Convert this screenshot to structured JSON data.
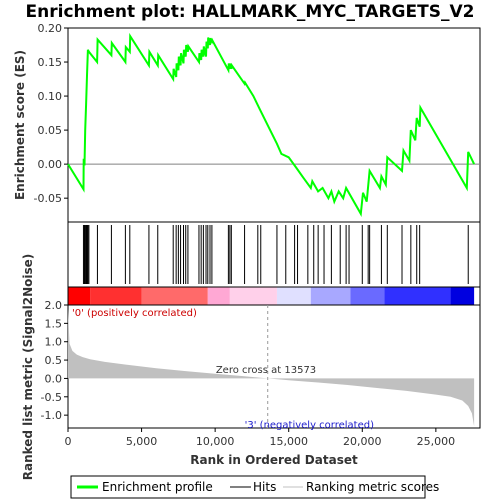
{
  "chart_data": {
    "type": "line",
    "title": "Enrichment plot: HALLMARK_MYC_TARGETS_V2",
    "xlabel": "Rank in Ordered Dataset",
    "ylabel_top": "Enrichment score (ES)",
    "ylabel_bottom": "Ranked list metric (Signal2Noise)",
    "xlim": [
      0,
      28000
    ],
    "x_ticks": [
      0,
      5000,
      10000,
      15000,
      20000,
      25000
    ],
    "x_tick_labels": [
      "0",
      "5,000",
      "10,000",
      "15,000",
      "20,000",
      "25,000"
    ],
    "es_ylim": [
      -0.085,
      0.2
    ],
    "es_ticks": [
      -0.05,
      0.0,
      0.05,
      0.1,
      0.15,
      0.2
    ],
    "es_tick_labels": [
      "-0.05",
      "0.00",
      "0.05",
      "0.10",
      "0.15",
      "0.20"
    ],
    "metric_ylim": [
      -1.35,
      2.0
    ],
    "metric_ticks": [
      -1.0,
      -0.5,
      0.0,
      0.5,
      1.0,
      1.5,
      2.0
    ],
    "metric_tick_labels": [
      "-1.0",
      "-0.5",
      "0.0",
      "0.5",
      "1.0",
      "1.5",
      "2.0"
    ],
    "series": [
      {
        "name": "Enrichment profile",
        "x": [
          0,
          1050,
          1070,
          1120,
          1170,
          1230,
          1290,
          1350,
          1420,
          1980,
          2010,
          2950,
          2980,
          3900,
          3930,
          4200,
          4230,
          5500,
          5530,
          6100,
          6130,
          7150,
          7180,
          7350,
          7380,
          7500,
          7530,
          7650,
          7680,
          7850,
          7880,
          8000,
          8030,
          8150,
          8180,
          8900,
          8930,
          9050,
          9080,
          9200,
          9230,
          9380,
          9410,
          9500,
          9530,
          9650,
          9680,
          9780,
          9810,
          10900,
          10930,
          11000,
          11030,
          11100,
          11130,
          12000,
          12030,
          12600,
          13050,
          14200,
          14500,
          15000,
          15500,
          16000,
          16500,
          16600,
          17000,
          17300,
          17700,
          17900,
          18100,
          18400,
          18700,
          18900,
          19900,
          20050,
          20300,
          20500,
          21200,
          21300,
          21600,
          21700,
          22700,
          22800,
          23200,
          23300,
          23600,
          23700,
          23900,
          23950,
          27100,
          27200,
          27600
        ],
        "y": [
          0.0,
          -0.037,
          0.008,
          -0.002,
          0.05,
          0.088,
          0.13,
          0.168,
          0.165,
          0.15,
          0.183,
          0.16,
          0.178,
          0.15,
          0.172,
          0.165,
          0.188,
          0.145,
          0.165,
          0.145,
          0.16,
          0.125,
          0.14,
          0.128,
          0.148,
          0.138,
          0.158,
          0.145,
          0.163,
          0.148,
          0.168,
          0.158,
          0.175,
          0.165,
          0.173,
          0.15,
          0.163,
          0.153,
          0.168,
          0.158,
          0.173,
          0.158,
          0.18,
          0.17,
          0.186,
          0.175,
          0.185,
          0.18,
          0.182,
          0.138,
          0.148,
          0.14,
          0.148,
          0.14,
          0.145,
          0.118,
          0.12,
          0.1,
          0.08,
          0.03,
          0.015,
          0.01,
          -0.005,
          -0.02,
          -0.035,
          -0.025,
          -0.04,
          -0.035,
          -0.05,
          -0.04,
          -0.055,
          -0.04,
          -0.05,
          -0.035,
          -0.073,
          -0.042,
          -0.055,
          -0.01,
          -0.035,
          -0.018,
          -0.03,
          0.01,
          -0.01,
          0.02,
          0.005,
          0.05,
          0.035,
          0.068,
          0.055,
          0.083,
          -0.035,
          0.018,
          0.0
        ]
      },
      {
        "name": "Hits",
        "positions": [
          1050,
          1120,
          1170,
          1230,
          1290,
          1350,
          1420,
          2000,
          2950,
          3900,
          4200,
          5500,
          6100,
          7150,
          7350,
          7500,
          7650,
          7850,
          8000,
          8150,
          8900,
          9050,
          9200,
          9380,
          9500,
          9650,
          9780,
          10900,
          11000,
          11100,
          12000,
          12900,
          13100,
          14200,
          14800,
          15400,
          15600,
          16300,
          16700,
          17000,
          17400,
          17900,
          18500,
          18900,
          19100,
          20000,
          20400,
          20500,
          21300,
          21700,
          22700,
          23300,
          23700,
          23900,
          27200
        ]
      },
      {
        "name": "Ranking metric scores",
        "x": [
          0,
          100,
          300,
          600,
          1000,
          1500,
          2500,
          4000,
          6000,
          8000,
          10000,
          12000,
          13573,
          15000,
          17000,
          19000,
          21000,
          23000,
          25000,
          26000,
          26800,
          27200,
          27450,
          27600
        ],
        "y": [
          1.9,
          0.95,
          0.75,
          0.65,
          0.58,
          0.52,
          0.45,
          0.37,
          0.28,
          0.2,
          0.13,
          0.06,
          0.0,
          -0.05,
          -0.11,
          -0.18,
          -0.26,
          -0.34,
          -0.44,
          -0.5,
          -0.6,
          -0.75,
          -0.95,
          -1.3
        ]
      }
    ],
    "heatmap_bar": {
      "colors": [
        "#ff0000",
        "#ff3030",
        "#ff6a6a",
        "#ffa8d4",
        "#ffd0ea",
        "#e0e0ff",
        "#a8a8ff",
        "#6a6aff",
        "#3030ff",
        "#0000e0"
      ],
      "bounds": [
        0,
        1500,
        5000,
        9500,
        11000,
        14200,
        16500,
        19200,
        21500,
        26000,
        27600
      ]
    },
    "annotations": {
      "pos_label": "'0' (positively correlated)",
      "neg_label": "'3' (negatively correlated)",
      "zero_cross": "Zero cross at 13573",
      "zero_cross_x": 13573
    },
    "legend": {
      "placement": "bottom",
      "items": [
        {
          "label": "Enrichment profile",
          "color": "#00ff00"
        },
        {
          "label": "Hits",
          "color": "#000000"
        },
        {
          "label": "Ranking metric scores",
          "color": "#c0c0c0"
        }
      ]
    },
    "colors": {
      "es_line": "#00ff00",
      "hit": "#000000",
      "metric_fill": "#c0c0c0",
      "pos_text": "#cc0000",
      "neg_text": "#2020cc",
      "grid_line": "#808080"
    }
  }
}
